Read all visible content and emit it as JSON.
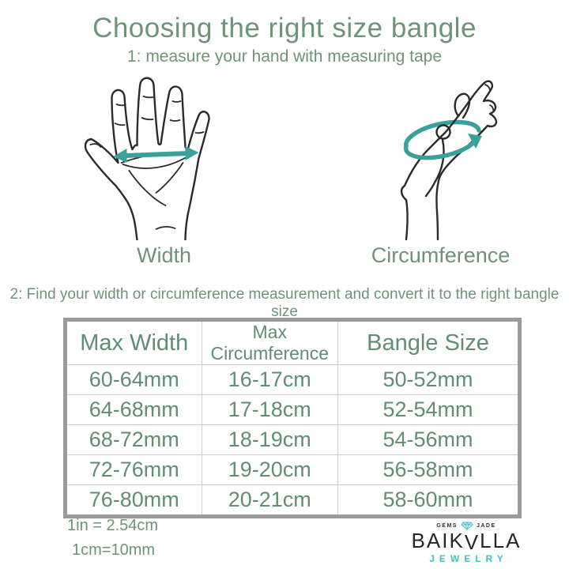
{
  "page": {
    "title": "Choosing the right size bangle",
    "step1": "1: measure your hand with measuring tape",
    "step2": "2: Find your width or circumference measurement and convert it to the right bangle size"
  },
  "figures": {
    "width_label": "Width",
    "circumference_label": "Circumference"
  },
  "table": {
    "headers": [
      "Max Width",
      "Max Circumference",
      "Bangle Size"
    ],
    "rows": [
      [
        "60-64mm",
        "16-17cm",
        "50-52mm"
      ],
      [
        "64-68mm",
        "17-18cm",
        "52-54mm"
      ],
      [
        "68-72mm",
        "18-19cm",
        "54-56mm"
      ],
      [
        "72-76mm",
        "19-20cm",
        "56-58mm"
      ],
      [
        "76-80mm",
        "20-21cm",
        "58-60mm"
      ]
    ]
  },
  "notes": {
    "line1": "1in = 2.54cm",
    "line2": "1cm=10mm"
  },
  "logo": {
    "gems": "GEMS",
    "jade": "JADE",
    "wordmark_pre": "BAIK",
    "wordmark_a": "Λ",
    "wordmark_post": "LLA",
    "subtitle": "JEWELRY"
  },
  "colors": {
    "text_green": "#6d9478",
    "table_green": "#5f8e72",
    "teal_arrow": "#39a198",
    "logo_teal": "#3fc3c9",
    "logo_black": "#23282b",
    "table_border": "#9b9b9b",
    "grid_line": "#cfcfcf",
    "background": "#ffffff"
  }
}
